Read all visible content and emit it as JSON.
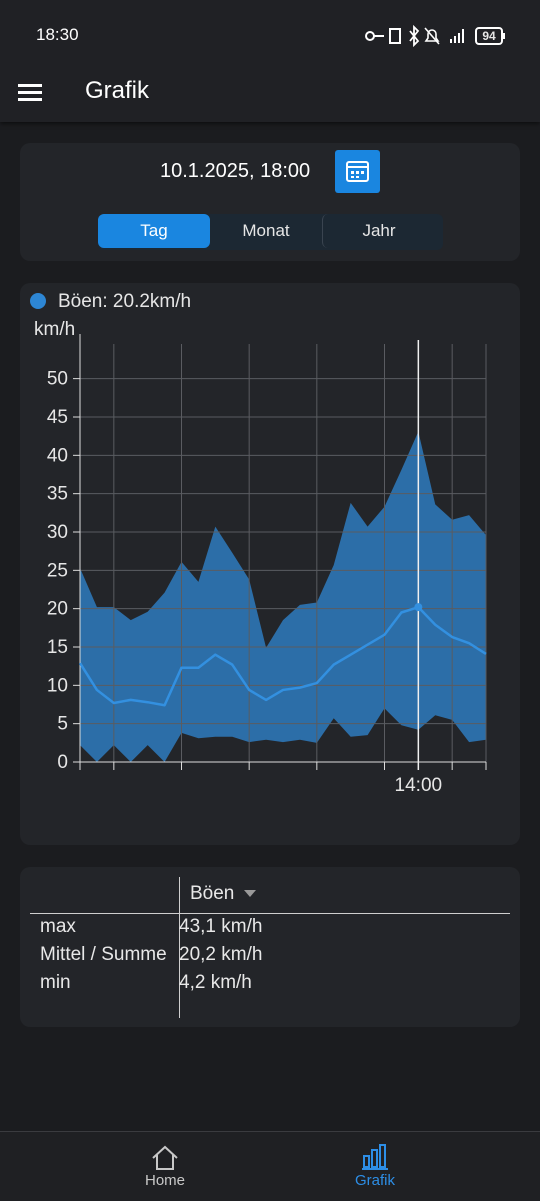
{
  "status_bar": {
    "time": "18:30",
    "battery": "94"
  },
  "app_bar": {
    "title": "Grafik"
  },
  "date_picker": {
    "date": "10.1.2025, 18:00"
  },
  "tabs": {
    "items": [
      "Tag",
      "Monat",
      "Jahr"
    ],
    "selected": 0
  },
  "chart_data": {
    "type": "band-line",
    "legend": "Böen: 20.2km/h",
    "y_label": "km/h",
    "x": [
      4,
      4.5,
      5,
      5.5,
      6,
      6.5,
      7,
      7.5,
      8,
      8.5,
      9,
      9.5,
      10,
      10.5,
      11,
      11.5,
      12,
      12.5,
      13,
      13.5,
      14,
      14.5,
      15,
      15.5,
      16
    ],
    "series": [
      {
        "color": "#2c6ea8",
        "values": [
          25.3,
          20.2,
          20.2,
          18.5,
          19.6,
          22.1,
          26.1,
          23.5,
          30.7,
          27.3,
          23.8,
          14.9,
          18.5,
          20.5,
          20.8,
          25.7,
          33.8,
          30.7,
          33.3,
          38.1,
          43.1,
          33.6,
          31.6,
          32.2,
          29.6
        ]
      },
      {
        "color": "#3390e0",
        "values": [
          12.9,
          9.4,
          7.7,
          8.1,
          7.8,
          7.4,
          12.3,
          12.3,
          14.0,
          12.7,
          9.4,
          8.1,
          9.4,
          9.7,
          10.3,
          12.7,
          14.0,
          15.3,
          16.6,
          19.5,
          20.2,
          17.9,
          16.3,
          15.5,
          14.1
        ]
      },
      {
        "color": "#232529",
        "values": [
          2.2,
          0,
          2.2,
          0,
          2.2,
          0,
          3.8,
          3.1,
          3.3,
          3.3,
          2.6,
          2.9,
          2.6,
          2.9,
          2.5,
          5.7,
          3.3,
          3.5,
          7.0,
          4.8,
          4.2,
          6.1,
          5.5,
          2.6,
          2.9
        ]
      }
    ],
    "xlim": [
      4,
      16
    ],
    "ylim": [
      0,
      54
    ],
    "yticks": [
      0,
      5,
      10,
      15,
      20,
      25,
      30,
      35,
      40,
      45,
      50
    ],
    "xticks": [
      {
        "value": 14,
        "label": "14:00"
      }
    ],
    "xgrid": [
      5,
      7,
      9,
      11,
      13,
      15,
      16
    ],
    "grid": true
  },
  "table": {
    "header": "Böen",
    "rows": [
      [
        "max",
        "43,1 km/h"
      ],
      [
        "Mittel / Summe",
        "20,2 km/h"
      ],
      [
        "min",
        "4,2 km/h"
      ]
    ]
  },
  "nav": {
    "items": [
      "Home",
      "Grafik"
    ],
    "selected": 1
  }
}
